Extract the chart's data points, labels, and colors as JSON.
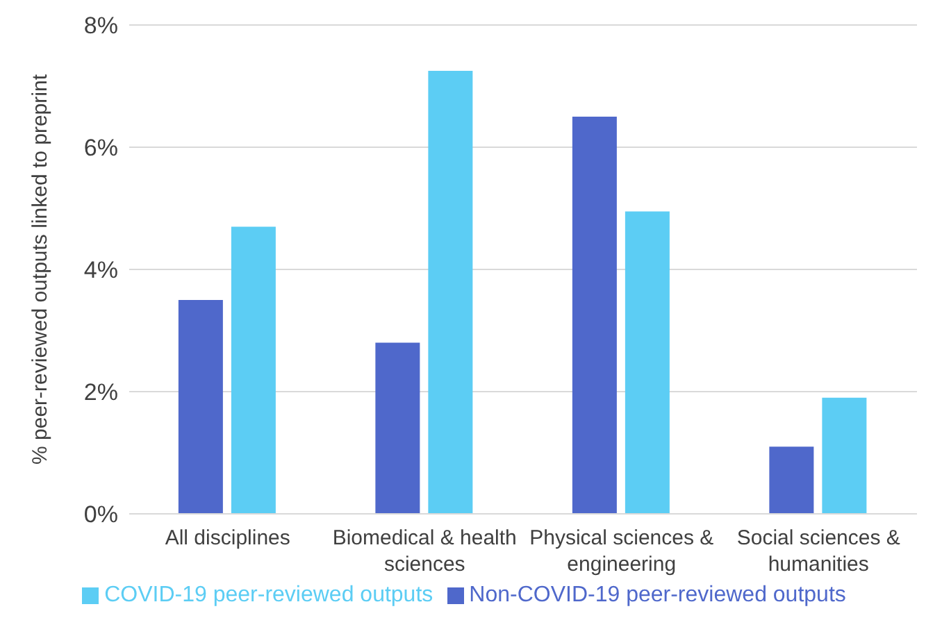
{
  "chart_data": {
    "type": "bar",
    "ylabel": "% peer-reviewed outputs linked to preprint",
    "categories": [
      "All disciplines",
      "Biomedical & health sciences",
      "Physical sciences & engineering",
      "Social sciences & humanities"
    ],
    "series": [
      {
        "name": "Non-COVID-19 peer-reviewed outputs",
        "color": "#4f68cb",
        "values": [
          3.5,
          2.8,
          6.5,
          1.1
        ]
      },
      {
        "name": "COVID-19 peer-reviewed outputs",
        "color": "#5ccdf4",
        "values": [
          4.7,
          7.25,
          4.95,
          1.9
        ]
      }
    ],
    "ylim": [
      0,
      8
    ],
    "yticks": [
      {
        "value": 0,
        "label": "0%"
      },
      {
        "value": 2,
        "label": "2%"
      },
      {
        "value": 4,
        "label": "4%"
      },
      {
        "value": 6,
        "label": "6%"
      },
      {
        "value": 8,
        "label": "8%"
      }
    ],
    "grid": "y",
    "legend": "bottom"
  }
}
